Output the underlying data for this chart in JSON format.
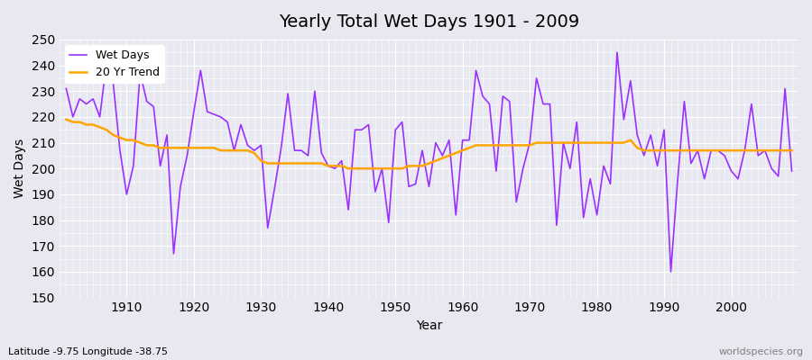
{
  "title": "Yearly Total Wet Days 1901 - 2009",
  "xlabel": "Year",
  "ylabel": "Wet Days",
  "subtitle_left": "Latitude -9.75 Longitude -38.75",
  "subtitle_right": "worldspecies.org",
  "ylim": [
    150,
    250
  ],
  "yticks": [
    150,
    160,
    170,
    180,
    190,
    200,
    210,
    220,
    230,
    240,
    250
  ],
  "line_color": "#9B30FF",
  "trend_color": "#FFA500",
  "bg_color": "#E8E8F0",
  "legend_labels": [
    "Wet Days",
    "20 Yr Trend"
  ],
  "wet_days": {
    "1901": 231,
    "1902": 220,
    "1903": 227,
    "1904": 225,
    "1905": 227,
    "1906": 220,
    "1907": 241,
    "1908": 233,
    "1909": 207,
    "1910": 190,
    "1911": 201,
    "1912": 237,
    "1913": 226,
    "1914": 224,
    "1915": 201,
    "1916": 213,
    "1917": 167,
    "1918": 193,
    "1919": 205,
    "1920": 222,
    "1921": 238,
    "1922": 222,
    "1923": 221,
    "1924": 220,
    "1925": 218,
    "1926": 207,
    "1927": 217,
    "1928": 209,
    "1929": 207,
    "1930": 209,
    "1931": 177,
    "1932": 192,
    "1933": 208,
    "1934": 229,
    "1935": 207,
    "1936": 207,
    "1937": 205,
    "1938": 230,
    "1939": 206,
    "1940": 201,
    "1941": 200,
    "1942": 203,
    "1943": 184,
    "1944": 215,
    "1945": 215,
    "1946": 217,
    "1947": 191,
    "1948": 200,
    "1949": 179,
    "1950": 215,
    "1951": 218,
    "1952": 193,
    "1953": 194,
    "1954": 207,
    "1955": 193,
    "1956": 210,
    "1957": 205,
    "1958": 211,
    "1959": 182,
    "1960": 211,
    "1961": 211,
    "1962": 238,
    "1963": 228,
    "1964": 225,
    "1965": 199,
    "1966": 228,
    "1967": 226,
    "1968": 187,
    "1969": 200,
    "1970": 210,
    "1971": 235,
    "1972": 225,
    "1973": 225,
    "1974": 178,
    "1975": 210,
    "1976": 200,
    "1977": 218,
    "1978": 181,
    "1979": 196,
    "1980": 182,
    "1981": 201,
    "1982": 194,
    "1983": 245,
    "1984": 219,
    "1985": 234,
    "1986": 213,
    "1987": 205,
    "1988": 213,
    "1989": 201,
    "1990": 215,
    "1991": 160,
    "1992": 195,
    "1993": 226,
    "1994": 202,
    "1995": 207,
    "1996": 196,
    "1997": 207,
    "1998": 207,
    "1999": 205,
    "2000": 199,
    "2001": 196,
    "2002": 207,
    "2003": 225,
    "2004": 205,
    "2005": 207,
    "2006": 200,
    "2007": 197,
    "2008": 231,
    "2009": 199
  },
  "trend_days": {
    "1901": 219,
    "1902": 218,
    "1903": 218,
    "1904": 217,
    "1905": 217,
    "1906": 216,
    "1907": 215,
    "1908": 213,
    "1909": 212,
    "1910": 211,
    "1911": 211,
    "1912": 210,
    "1913": 209,
    "1914": 209,
    "1915": 208,
    "1916": 208,
    "1917": 208,
    "1918": 208,
    "1919": 208,
    "1920": 208,
    "1921": 208,
    "1922": 208,
    "1923": 208,
    "1924": 207,
    "1925": 207,
    "1926": 207,
    "1927": 207,
    "1928": 207,
    "1929": 206,
    "1930": 203,
    "1931": 202,
    "1932": 202,
    "1933": 202,
    "1934": 202,
    "1935": 202,
    "1936": 202,
    "1937": 202,
    "1938": 202,
    "1939": 202,
    "1940": 201,
    "1941": 201,
    "1942": 201,
    "1943": 200,
    "1944": 200,
    "1945": 200,
    "1946": 200,
    "1947": 200,
    "1948": 200,
    "1949": 200,
    "1950": 200,
    "1951": 200,
    "1952": 201,
    "1953": 201,
    "1954": 201,
    "1955": 202,
    "1956": 203,
    "1957": 204,
    "1958": 205,
    "1959": 206,
    "1960": 207,
    "1961": 208,
    "1962": 209,
    "1963": 209,
    "1964": 209,
    "1965": 209,
    "1966": 209,
    "1967": 209,
    "1968": 209,
    "1969": 209,
    "1970": 209,
    "1971": 210,
    "1972": 210,
    "1973": 210,
    "1974": 210,
    "1975": 210,
    "1976": 210,
    "1977": 210,
    "1978": 210,
    "1979": 210,
    "1980": 210,
    "1981": 210,
    "1982": 210,
    "1983": 210,
    "1984": 210,
    "1985": 211,
    "1986": 208,
    "1987": 207,
    "1988": 207,
    "1989": 207,
    "1990": 207,
    "1991": 207,
    "1992": 207,
    "1993": 207,
    "1994": 207,
    "1995": 207,
    "1996": 207,
    "1997": 207,
    "1998": 207,
    "1999": 207,
    "2000": 207,
    "2001": 207,
    "2002": 207,
    "2003": 207,
    "2004": 207,
    "2005": 207,
    "2006": 207,
    "2007": 207,
    "2008": 207,
    "2009": 207
  }
}
